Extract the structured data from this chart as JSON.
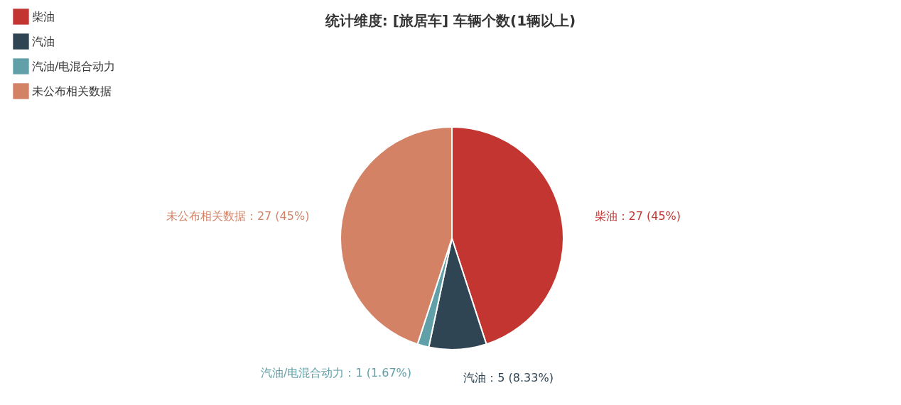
{
  "chart_data": {
    "type": "pie",
    "title": "统计维度: [旅居车] 车辆个数(1辆以上)",
    "categories": [
      "柴油",
      "汽油",
      "汽油/电混合动力",
      "未公布相关数据"
    ],
    "values": [
      27,
      5,
      1,
      27
    ],
    "colors": [
      "#c23531",
      "#2f4554",
      "#61a0a8",
      "#d48265"
    ],
    "value_labels": [
      "柴油：27 (45%)",
      "汽油：5 (8.33%)",
      "汽油/电混合动力：1 (1.67%)",
      "未公布相关数据：27 (45%)"
    ],
    "legend": "top left"
  }
}
